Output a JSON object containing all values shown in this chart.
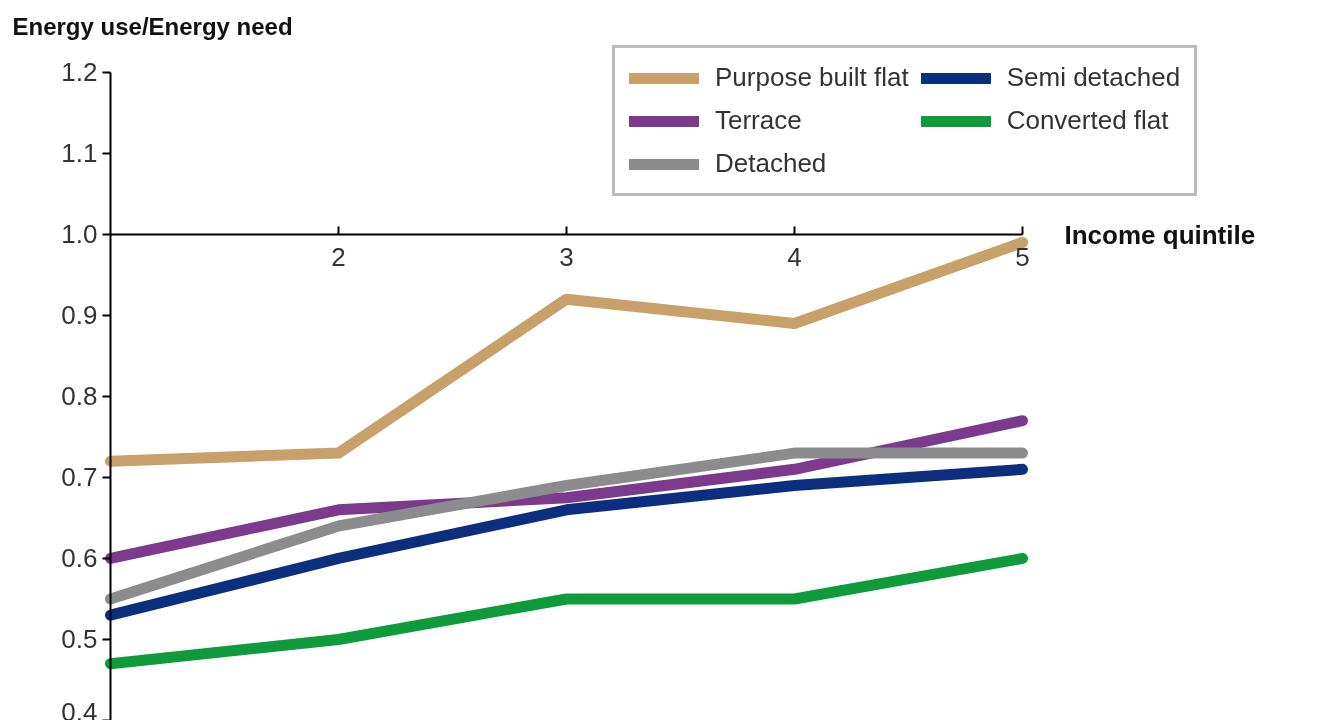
{
  "chart_data": {
    "type": "line",
    "xlabel": "Income quintile",
    "ylabel": "Energy use/Energy need",
    "x": [
      1,
      2,
      3,
      4,
      5
    ],
    "series": [
      {
        "name": "Purpose built flat",
        "color": "#c8a06a",
        "values": [
          0.72,
          0.73,
          0.92,
          0.89,
          0.99
        ]
      },
      {
        "name": "Terrace",
        "color": "#7b3a8c",
        "values": [
          0.6,
          0.66,
          0.675,
          0.71,
          0.77
        ]
      },
      {
        "name": "Detached",
        "color": "#8c8c8e",
        "values": [
          0.55,
          0.64,
          0.69,
          0.73,
          0.73
        ]
      },
      {
        "name": "Semi detached",
        "color": "#0c2e7e",
        "values": [
          0.53,
          0.6,
          0.66,
          0.69,
          0.71
        ]
      },
      {
        "name": "Converted flat",
        "color": "#0f9a3c",
        "values": [
          0.47,
          0.5,
          0.55,
          0.55,
          0.6
        ]
      }
    ],
    "xlim": [
      1,
      5
    ],
    "xticks": [
      2,
      3,
      4,
      5
    ],
    "ylim": [
      0.4,
      1.2
    ],
    "yticks": [
      {
        "value": 0.4,
        "label": "0.4"
      },
      {
        "value": 0.5,
        "label": "0.5"
      },
      {
        "value": 0.6,
        "label": "0.6"
      },
      {
        "value": 0.7,
        "label": "0.7"
      },
      {
        "value": 0.8,
        "label": "0.8"
      },
      {
        "value": 0.9,
        "label": "0.9"
      },
      {
        "value": 1.0,
        "label": "1.0"
      },
      {
        "value": 1.1,
        "label": "1.1"
      },
      {
        "value": 1.2,
        "label": "1.2"
      }
    ],
    "grid": false,
    "legend": "top right",
    "marker": "none",
    "line_style": "solid"
  }
}
